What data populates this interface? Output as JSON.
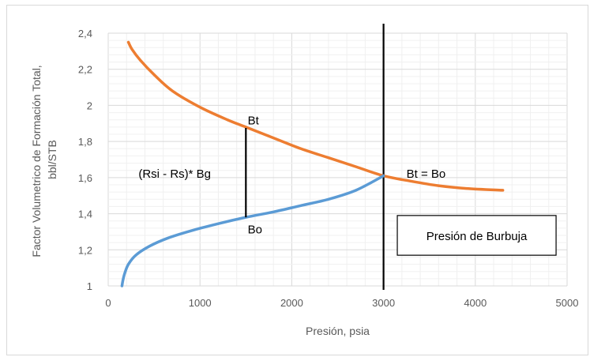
{
  "chart_data": {
    "type": "line",
    "title": "",
    "xlabel": "Presión, psia",
    "ylabel": "Factor Volumetrico de Formación Total, bbl/STB",
    "ylabel_lines": [
      "Factor Volumetrico de Formación Total,",
      "bbl/STB"
    ],
    "xlim": [
      0,
      5000
    ],
    "ylim": [
      1,
      2.4
    ],
    "x_ticks": [
      0,
      1000,
      2000,
      3000,
      4000,
      5000
    ],
    "x_tick_labels": [
      "0",
      "1000",
      "2000",
      "3000",
      "4000",
      "5000"
    ],
    "y_ticks": [
      1,
      1.2,
      1.4,
      1.6,
      1.8,
      2,
      2.2,
      2.4
    ],
    "y_tick_labels": [
      "1",
      "1,2",
      "1,4",
      "1,6",
      "1,8",
      "2",
      "2,2",
      "2,4"
    ],
    "grid": true,
    "series": [
      {
        "color": "#ed7d31",
        "x": [
          220,
          260,
          350,
          500,
          700,
          1000,
          1300,
          1500,
          1800,
          2100,
          2400,
          2700,
          3000,
          3300,
          3600,
          3900,
          4300
        ],
        "values": [
          2.35,
          2.31,
          2.25,
          2.17,
          2.08,
          1.99,
          1.92,
          1.88,
          1.82,
          1.76,
          1.71,
          1.66,
          1.61,
          1.58,
          1.555,
          1.54,
          1.53
        ]
      },
      {
        "color": "#5b9bd5",
        "x": [
          150,
          160,
          180,
          220,
          300,
          450,
          650,
          900,
          1200,
          1500,
          1800,
          2100,
          2400,
          2700,
          3000
        ],
        "values": [
          1.0,
          1.03,
          1.07,
          1.12,
          1.17,
          1.22,
          1.265,
          1.305,
          1.345,
          1.38,
          1.41,
          1.445,
          1.48,
          1.53,
          1.61
        ]
      }
    ],
    "bubble_point_line": {
      "x": 3000,
      "color": "#000000"
    },
    "segment": {
      "x": 1500,
      "y_from": 1.38,
      "y_to": 1.875,
      "color": "#000000"
    },
    "annotations": [
      {
        "text": "Bt",
        "x": 1520,
        "y": 1.895
      },
      {
        "text": "Bo",
        "x": 1520,
        "y": 1.29
      },
      {
        "text": "(Rsi - Rs)* Bg",
        "x": 330,
        "y": 1.6
      },
      {
        "text": "Bt = Bo",
        "x": 3250,
        "y": 1.6
      }
    ],
    "box_label": {
      "text": "Presión de Burbuja",
      "x_from": 3150,
      "x_to": 4880,
      "y_from": 1.17,
      "y_to": 1.39
    }
  }
}
